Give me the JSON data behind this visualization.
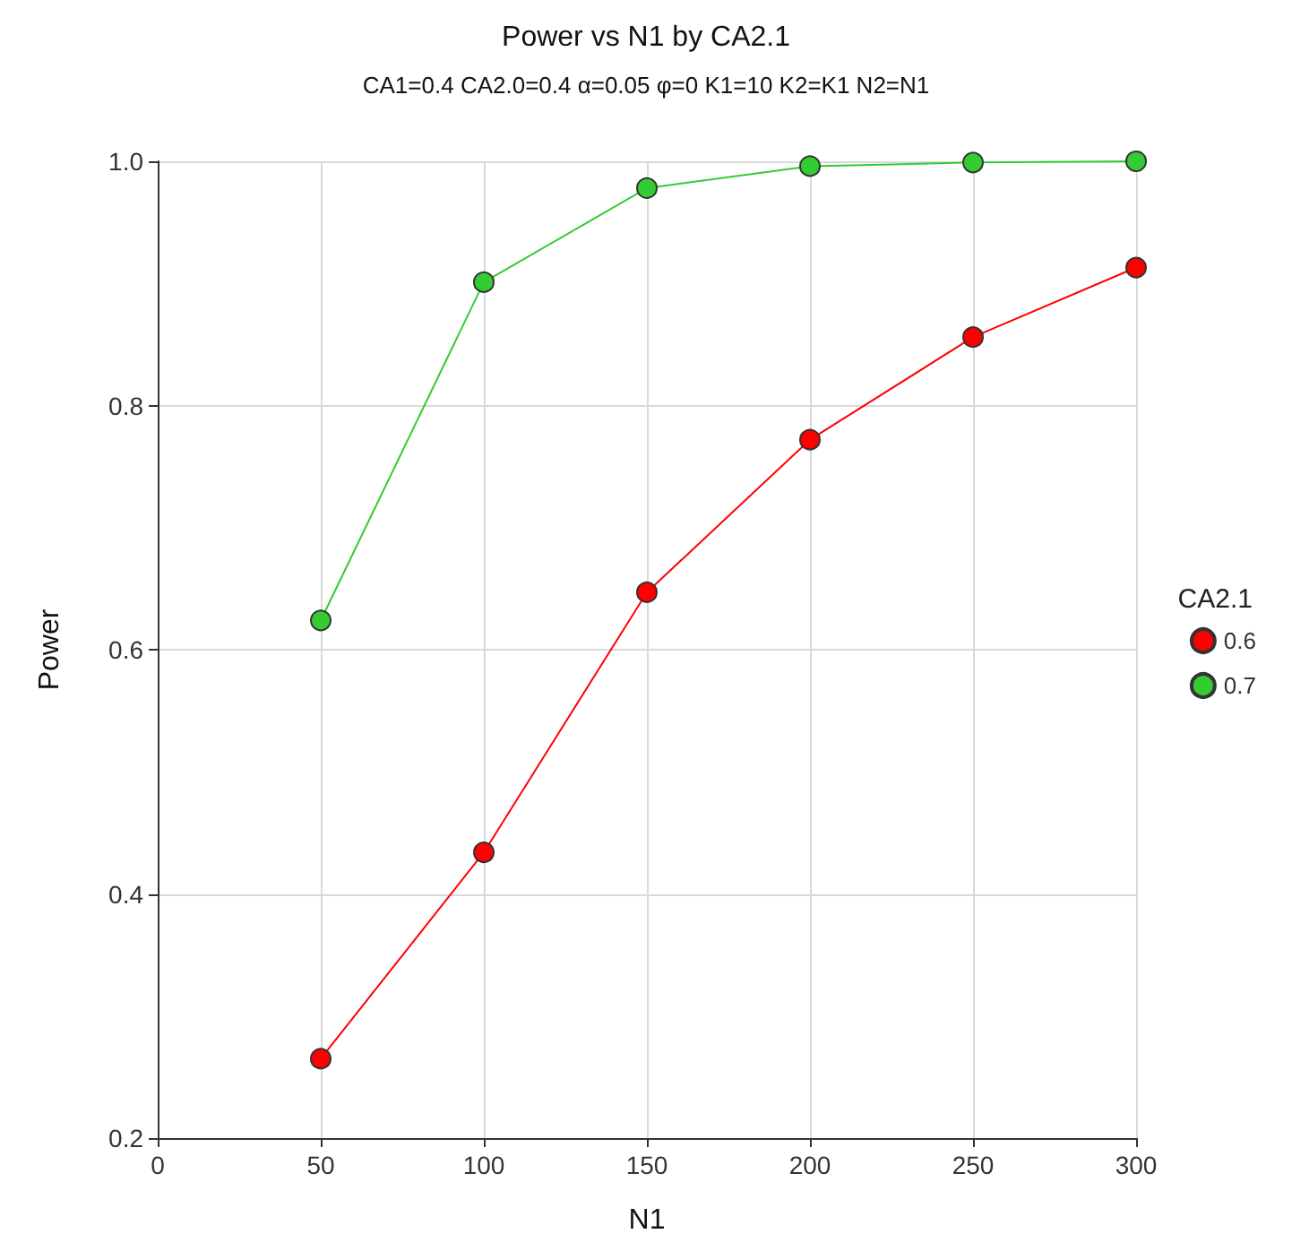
{
  "chart_data": {
    "type": "line",
    "title": "Power vs N1 by CA2.1",
    "subtitle": "CA1=0.4 CA2.0=0.4 α=0.05 φ=0 K1=10 K2=K1 N2=N1",
    "xlabel": "N1",
    "ylabel": "Power",
    "legend_title": "CA2.1",
    "x": [
      50,
      100,
      150,
      200,
      250,
      300
    ],
    "series": [
      {
        "name": "0.6",
        "color": "#ff0000",
        "values": [
          0.265,
          0.434,
          0.647,
          0.772,
          0.856,
          0.913
        ]
      },
      {
        "name": "0.7",
        "color": "#33cc33",
        "values": [
          0.624,
          0.901,
          0.978,
          0.996,
          0.999,
          1.0
        ]
      }
    ],
    "xlim": [
      0,
      300
    ],
    "xticks": [
      0,
      50,
      100,
      150,
      200,
      250,
      300
    ],
    "ylim": [
      0.2,
      1.0
    ],
    "yticks": [
      0.2,
      0.4,
      0.6,
      0.8,
      {
        "value": 1,
        "label": "1.0"
      }
    ],
    "grid": true,
    "legend": "right",
    "marker": "circle",
    "line_style": "solid"
  }
}
